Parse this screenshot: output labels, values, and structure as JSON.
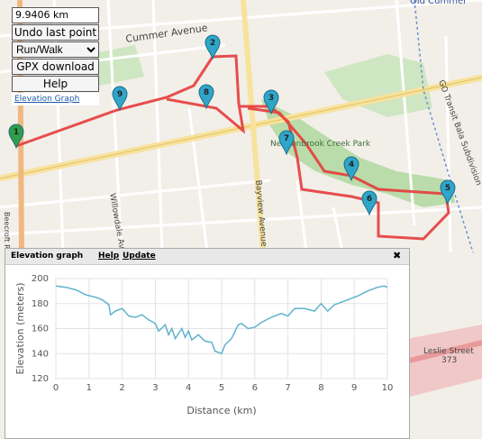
{
  "panel": {
    "distance": "9.9406 km",
    "undo": "Undo last point",
    "mode": "Run/Walk",
    "gpx": "GPX download",
    "help": "Help",
    "elevation_link": "Elevation Graph"
  },
  "map_labels": [
    "Cummer Avenue",
    "Old Cummer",
    "Willowdale Avenue",
    "Bayview Avenue",
    "Newtonbrook Creek Park",
    "GO Transit Bala Subdivision",
    "Leslie Street",
    "373",
    "Beecroft R"
  ],
  "markers": [
    "1",
    "2",
    "3",
    "4",
    "5",
    "6",
    "7",
    "8",
    "9"
  ],
  "elevation_window": {
    "title": "Elevation graph",
    "help": "Help",
    "update": "Update",
    "close": "✖"
  },
  "chart_data": {
    "type": "line",
    "x_label": "Distance (km)",
    "y_label": "Elevation (meters)",
    "color": "#5eb3cc",
    "grid": true,
    "x": [
      0,
      0.3,
      0.6,
      0.9,
      1.2,
      1.4,
      1.6,
      1.65,
      1.8,
      2.0,
      2.2,
      2.4,
      2.6,
      2.8,
      3.0,
      3.1,
      3.3,
      3.4,
      3.5,
      3.6,
      3.8,
      3.9,
      4.0,
      4.1,
      4.3,
      4.5,
      4.7,
      4.8,
      5.0,
      5.1,
      5.3,
      5.5,
      5.6,
      5.8,
      6.0,
      6.2,
      6.5,
      6.8,
      7.0,
      7.2,
      7.5,
      7.8,
      8.0,
      8.2,
      8.4,
      8.6,
      8.9,
      9.1,
      9.4,
      9.7,
      9.9,
      10
    ],
    "values": [
      194,
      193,
      191,
      187,
      185,
      183,
      179,
      171,
      174,
      176,
      170,
      169,
      171,
      167,
      164,
      158,
      163,
      155,
      160,
      152,
      160,
      153,
      158,
      151,
      155,
      150,
      149,
      142,
      140,
      147,
      152,
      163,
      164,
      160,
      161,
      165,
      169,
      172,
      170,
      176,
      176,
      174,
      180,
      174,
      179,
      181,
      184,
      186,
      190,
      193,
      194,
      193
    ],
    "xlim": [
      0,
      10
    ],
    "xticks": [
      0,
      1,
      2,
      3,
      4,
      5,
      6,
      7,
      8,
      9,
      10
    ],
    "ylim": [
      120,
      200
    ],
    "yticks": [
      120,
      140,
      160,
      180,
      200
    ]
  }
}
